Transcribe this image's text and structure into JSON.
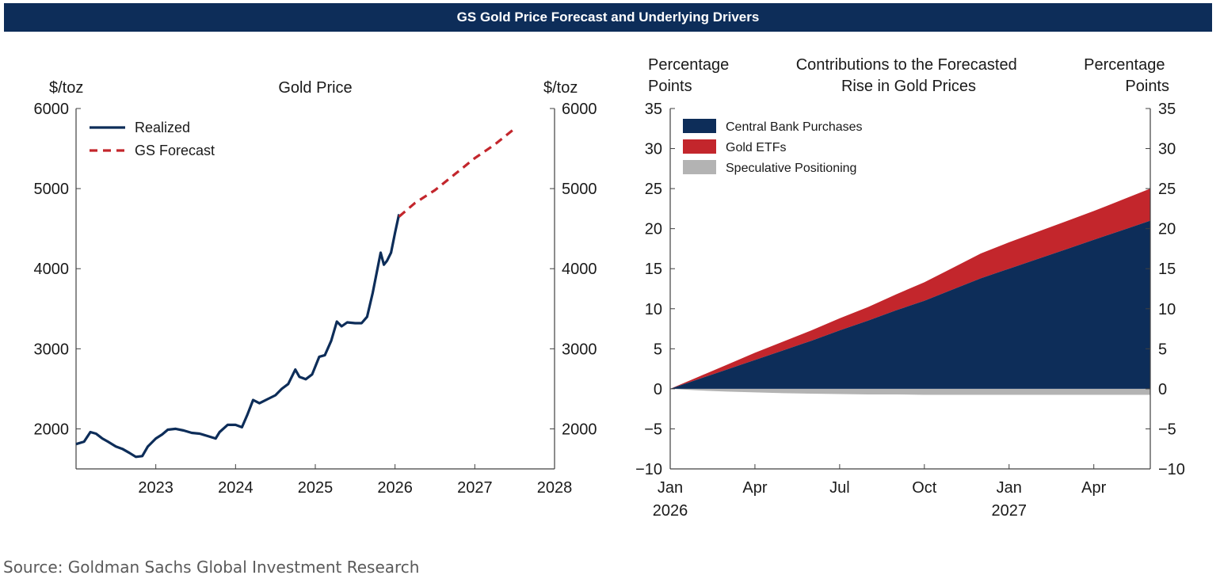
{
  "header": {
    "title": "GS Gold Price Forecast and Underlying Drivers"
  },
  "source": "Source: Goldman Sachs Global Investment Research",
  "colors": {
    "banner": "#0d2d59",
    "navy": "#0d2d59",
    "red": "#c3262c",
    "gray": "#b3b3b3"
  },
  "chart_data": [
    {
      "type": "line",
      "title": "Gold Price",
      "ylabel_left": "$/toz",
      "ylabel_right": "$/toz",
      "xlim": [
        2022.0,
        2028.0
      ],
      "ylim": [
        1500,
        6000
      ],
      "x_ticks": [
        2023,
        2024,
        2025,
        2026,
        2027,
        2028
      ],
      "y_ticks": [
        2000,
        3000,
        4000,
        5000,
        6000
      ],
      "legend_position": "top-left",
      "series": [
        {
          "name": "Realized",
          "color": "#0d2d59",
          "style": "solid",
          "x": [
            2022.0,
            2022.1,
            2022.18,
            2022.25,
            2022.33,
            2022.4,
            2022.5,
            2022.58,
            2022.67,
            2022.75,
            2022.83,
            2022.9,
            2023.0,
            2023.08,
            2023.15,
            2023.25,
            2023.35,
            2023.45,
            2023.55,
            2023.65,
            2023.75,
            2023.8,
            2023.9,
            2024.0,
            2024.08,
            2024.15,
            2024.22,
            2024.3,
            2024.4,
            2024.5,
            2024.58,
            2024.66,
            2024.75,
            2024.8,
            2024.88,
            2024.96,
            2025.05,
            2025.12,
            2025.2,
            2025.27,
            2025.33,
            2025.4,
            2025.5,
            2025.58,
            2025.65,
            2025.72,
            2025.78,
            2025.82,
            2025.86,
            2025.9,
            2025.95,
            2026.0,
            2026.05
          ],
          "y": [
            1810,
            1840,
            1960,
            1940,
            1880,
            1840,
            1780,
            1750,
            1700,
            1650,
            1660,
            1780,
            1880,
            1930,
            1990,
            2000,
            1980,
            1950,
            1940,
            1910,
            1880,
            1960,
            2050,
            2050,
            2020,
            2180,
            2360,
            2320,
            2370,
            2420,
            2500,
            2560,
            2740,
            2650,
            2620,
            2680,
            2900,
            2920,
            3100,
            3340,
            3280,
            3330,
            3320,
            3320,
            3400,
            3700,
            4000,
            4200,
            4050,
            4100,
            4200,
            4450,
            4680
          ]
        },
        {
          "name": "GS Forecast",
          "color": "#c3262c",
          "style": "dashed",
          "x": [
            2026.05,
            2026.25,
            2026.5,
            2026.75,
            2027.0,
            2027.25,
            2027.5
          ],
          "y": [
            4650,
            4820,
            4980,
            5180,
            5380,
            5550,
            5750
          ]
        }
      ]
    },
    {
      "type": "area",
      "title": "Contributions to the Forecasted Rise in Gold Prices",
      "ylabel_left": "Percentage Points",
      "ylabel_right": "Percentage Points",
      "ylim": [
        -10,
        35
      ],
      "y_ticks": [
        -10,
        -5,
        0,
        5,
        10,
        15,
        20,
        25,
        30,
        35
      ],
      "x_tick_labels": [
        {
          "month": "Jan",
          "year": "2026"
        },
        {
          "month": "Apr",
          "year": ""
        },
        {
          "month": "Jul",
          "year": ""
        },
        {
          "month": "Oct",
          "year": ""
        },
        {
          "month": "Jan",
          "year": "2027"
        },
        {
          "month": "Apr",
          "year": ""
        }
      ],
      "legend_position": "top-left",
      "x": [
        "2026-01",
        "2026-02",
        "2026-03",
        "2026-04",
        "2026-05",
        "2026-06",
        "2026-07",
        "2026-08",
        "2026-09",
        "2026-10",
        "2026-11",
        "2026-12",
        "2027-01",
        "2027-02",
        "2027-03",
        "2027-04",
        "2027-05",
        "2027-06"
      ],
      "series": [
        {
          "name": "Central Bank Purchases",
          "color": "#0d2d59",
          "values": [
            0,
            1.2,
            2.4,
            3.6,
            4.8,
            6.0,
            7.3,
            8.5,
            9.8,
            11.0,
            12.4,
            13.8,
            15.0,
            16.2,
            17.4,
            18.6,
            19.8,
            21.0
          ]
        },
        {
          "name": "Gold ETFs",
          "color": "#c3262c",
          "values": [
            0,
            0.3,
            0.6,
            0.9,
            1.1,
            1.3,
            1.5,
            1.7,
            2.0,
            2.3,
            2.7,
            3.1,
            3.3,
            3.4,
            3.5,
            3.6,
            3.8,
            4.0
          ]
        },
        {
          "name": "Speculative Positioning",
          "color": "#b3b3b3",
          "values": [
            0,
            -0.2,
            -0.35,
            -0.45,
            -0.55,
            -0.6,
            -0.65,
            -0.7,
            -0.7,
            -0.75,
            -0.75,
            -0.75,
            -0.75,
            -0.75,
            -0.75,
            -0.75,
            -0.75,
            -0.75
          ]
        }
      ]
    }
  ]
}
